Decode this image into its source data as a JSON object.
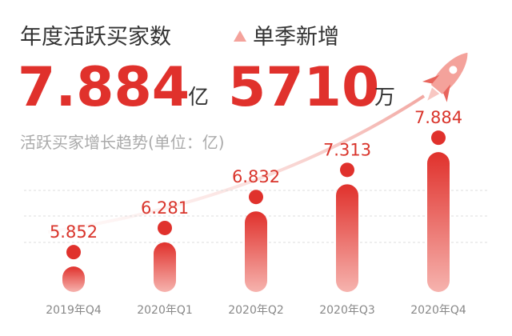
{
  "header": {
    "total_label": "年度活跃买家数",
    "total_value": "7.884",
    "total_unit": "亿",
    "new_label": "单季新增",
    "new_value": "5710",
    "new_unit": "万"
  },
  "chart_data": {
    "type": "bar",
    "subtitle": "活跃买家增长趋势(单位：亿)",
    "categories": [
      "2019年Q4",
      "2020年Q1",
      "2020年Q2",
      "2020年Q3",
      "2020年Q4"
    ],
    "values": [
      5.852,
      6.281,
      6.832,
      7.313,
      7.884
    ],
    "color": "#e0312c",
    "ylim": [
      5.4,
      8.0
    ]
  }
}
